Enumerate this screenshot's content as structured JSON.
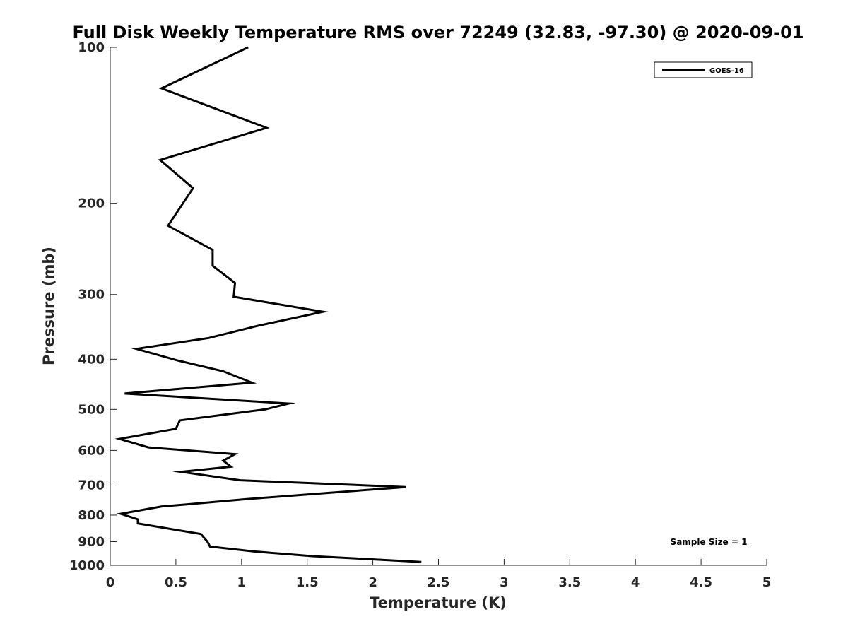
{
  "chart_data": {
    "type": "line",
    "title": "Full Disk Weekly Temperature RMS over 72249 (32.83, -97.30) @ 2020-09-01",
    "xlabel": "Temperature (K)",
    "ylabel": "Pressure (mb)",
    "xlim": [
      0,
      5
    ],
    "ylim": [
      100,
      1000
    ],
    "y_scale": "log",
    "y_reversed": true,
    "grid": false,
    "legend_position": "top-right",
    "x_ticks": [
      "0",
      "0.5",
      "1",
      "1.5",
      "2",
      "2.5",
      "3",
      "3.5",
      "4",
      "4.5",
      "5"
    ],
    "y_ticks": [
      "100",
      "200",
      "300",
      "400",
      "500",
      "600",
      "700",
      "800",
      "900",
      "1000"
    ],
    "annotation": "Sample Size = 1",
    "series": [
      {
        "name": "GOES-16",
        "color": "#000000",
        "points": [
          [
            1.05,
            100
          ],
          [
            0.39,
            120
          ],
          [
            1.19,
            143
          ],
          [
            0.38,
            165
          ],
          [
            0.63,
            187
          ],
          [
            0.44,
            221
          ],
          [
            0.78,
            246
          ],
          [
            0.78,
            264
          ],
          [
            0.95,
            285
          ],
          [
            0.94,
            303
          ],
          [
            1.62,
            324
          ],
          [
            1.12,
            345
          ],
          [
            0.75,
            364
          ],
          [
            0.2,
            382
          ],
          [
            0.51,
            402
          ],
          [
            0.86,
            422
          ],
          [
            1.08,
            444
          ],
          [
            0.11,
            466
          ],
          [
            1.36,
            487
          ],
          [
            1.18,
            500
          ],
          [
            0.53,
            525
          ],
          [
            0.5,
            545
          ],
          [
            0.07,
            570
          ],
          [
            0.29,
            592
          ],
          [
            0.95,
            610
          ],
          [
            0.86,
            628
          ],
          [
            0.92,
            645
          ],
          [
            0.54,
            660
          ],
          [
            0.99,
            685
          ],
          [
            2.25,
            706
          ],
          [
            1.65,
            725
          ],
          [
            1.04,
            745
          ],
          [
            0.39,
            770
          ],
          [
            0.08,
            795
          ],
          [
            0.21,
            815
          ],
          [
            0.21,
            830
          ],
          [
            0.51,
            855
          ],
          [
            0.69,
            870
          ],
          [
            0.74,
            900
          ],
          [
            0.76,
            920
          ],
          [
            1.09,
            940
          ],
          [
            1.54,
            960
          ],
          [
            2.37,
            985
          ]
        ]
      }
    ]
  }
}
